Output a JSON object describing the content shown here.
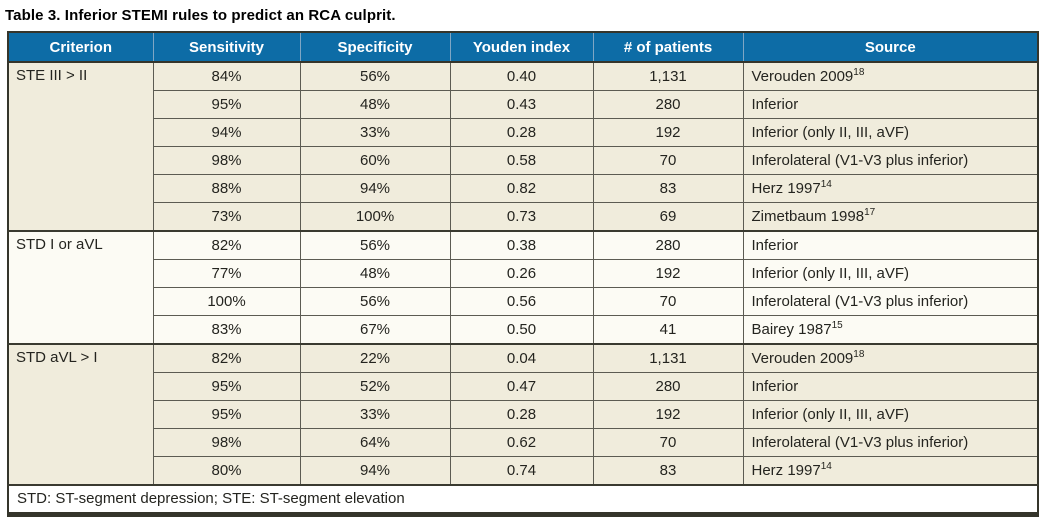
{
  "title": "Table 3. Inferior STEMI rules to predict an RCA culprit.",
  "table": {
    "columns": [
      "Criterion",
      "Sensitivity",
      "Specificity",
      "Youden index",
      "# of patients",
      "Source"
    ],
    "groups": [
      {
        "criterion": "STE III > II",
        "rows": [
          {
            "sensitivity": "84%",
            "specificity": "56%",
            "youden": "0.40",
            "patients": "1,131",
            "source": "Verouden 2009",
            "source_sup": "18"
          },
          {
            "sensitivity": "95%",
            "specificity": "48%",
            "youden": "0.43",
            "patients": "280",
            "source": "Inferior",
            "source_sup": ""
          },
          {
            "sensitivity": "94%",
            "specificity": "33%",
            "youden": "0.28",
            "patients": "192",
            "source": "Inferior (only II, III, aVF)",
            "source_sup": ""
          },
          {
            "sensitivity": "98%",
            "specificity": "60%",
            "youden": "0.58",
            "patients": "70",
            "source": "Inferolateral (V1-V3 plus inferior)",
            "source_sup": ""
          },
          {
            "sensitivity": "88%",
            "specificity": "94%",
            "youden": "0.82",
            "patients": "83",
            "source": "Herz 1997",
            "source_sup": "14"
          },
          {
            "sensitivity": "73%",
            "specificity": "100%",
            "youden": "0.73",
            "patients": "69",
            "source": "Zimetbaum 1998",
            "source_sup": "17"
          }
        ]
      },
      {
        "criterion": "STD I or aVL",
        "rows": [
          {
            "sensitivity": "82%",
            "specificity": "56%",
            "youden": "0.38",
            "patients": "280",
            "source": "Inferior",
            "source_sup": ""
          },
          {
            "sensitivity": "77%",
            "specificity": "48%",
            "youden": "0.26",
            "patients": "192",
            "source": "Inferior (only II, III, aVF)",
            "source_sup": ""
          },
          {
            "sensitivity": "100%",
            "specificity": "56%",
            "youden": "0.56",
            "patients": "70",
            "source": "Inferolateral (V1-V3 plus inferior)",
            "source_sup": ""
          },
          {
            "sensitivity": "83%",
            "specificity": "67%",
            "youden": "0.50",
            "patients": "41",
            "source": "Bairey 1987",
            "source_sup": "15"
          }
        ]
      },
      {
        "criterion": "STD aVL > I",
        "rows": [
          {
            "sensitivity": "82%",
            "specificity": "22%",
            "youden": "0.04",
            "patients": "1,131",
            "source": "Verouden 2009",
            "source_sup": "18"
          },
          {
            "sensitivity": "95%",
            "specificity": "52%",
            "youden": "0.47",
            "patients": "280",
            "source": "Inferior",
            "source_sup": ""
          },
          {
            "sensitivity": "95%",
            "specificity": "33%",
            "youden": "0.28",
            "patients": "192",
            "source": "Inferior (only II, III, aVF)",
            "source_sup": ""
          },
          {
            "sensitivity": "98%",
            "specificity": "64%",
            "youden": "0.62",
            "patients": "70",
            "source": "Inferolateral (V1-V3 plus inferior)",
            "source_sup": ""
          },
          {
            "sensitivity": "80%",
            "specificity": "94%",
            "youden": "0.74",
            "patients": "83",
            "source": "Herz 1997",
            "source_sup": "14"
          }
        ]
      }
    ],
    "footnote": "STD: ST-segment depression; STE: ST-segment elevation"
  },
  "colors": {
    "header_bg": "#0d6ca6",
    "header_text": "#ffffff",
    "group_bg_beige": "#f0ecdc",
    "group_bg_white": "#fcfbf4",
    "border_dark": "#35352b",
    "border_cell": "#5c5b52",
    "text": "#24241f"
  }
}
